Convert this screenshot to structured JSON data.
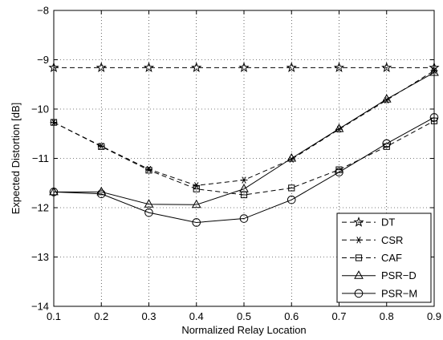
{
  "chart_data": {
    "type": "line",
    "title": "",
    "xlabel": "Normalized Relay Location",
    "ylabel": "Expected Distortion [dB]",
    "xlim": [
      0.1,
      0.9
    ],
    "ylim": [
      -14,
      -8
    ],
    "xticks": [
      0.1,
      0.2,
      0.3,
      0.4,
      0.5,
      0.6,
      0.7,
      0.8,
      0.9
    ],
    "yticks": [
      -14,
      -13,
      -12,
      -11,
      -10,
      -9,
      -8
    ],
    "xtick_labels": [
      "0.1",
      "0.2",
      "0.3",
      "0.4",
      "0.5",
      "0.6",
      "0.7",
      "0.8",
      "0.9"
    ],
    "ytick_labels": [
      "−14",
      "−13",
      "−12",
      "−11",
      "−10",
      "−9",
      "−8"
    ],
    "grid": true,
    "legend_position": "bottom-right",
    "x": [
      0.1,
      0.2,
      0.3,
      0.4,
      0.5,
      0.6,
      0.7,
      0.8,
      0.9
    ],
    "series": [
      {
        "name": "DT",
        "marker": "star",
        "dash": "dashed",
        "values": [
          -9.16,
          -9.16,
          -9.16,
          -9.16,
          -9.16,
          -9.16,
          -9.16,
          -9.16,
          -9.16
        ]
      },
      {
        "name": "CSR",
        "marker": "asterisk",
        "dash": "dashed",
        "values": [
          -10.27,
          -10.75,
          -11.22,
          -11.55,
          -11.44,
          -11.02,
          -10.41,
          -9.82,
          -9.22
        ]
      },
      {
        "name": "CAF",
        "marker": "square-plus",
        "dash": "dashed",
        "values": [
          -10.27,
          -10.76,
          -11.24,
          -11.62,
          -11.74,
          -11.6,
          -11.23,
          -10.76,
          -10.24
        ]
      },
      {
        "name": "PSR−D",
        "marker": "triangle",
        "dash": "solid",
        "values": [
          -11.68,
          -11.68,
          -11.93,
          -11.94,
          -11.62,
          -11.0,
          -10.4,
          -9.8,
          -9.26
        ]
      },
      {
        "name": "PSR−M",
        "marker": "circle",
        "dash": "solid",
        "values": [
          -11.68,
          -11.72,
          -12.1,
          -12.3,
          -12.22,
          -11.84,
          -11.28,
          -10.7,
          -10.17
        ]
      }
    ]
  }
}
